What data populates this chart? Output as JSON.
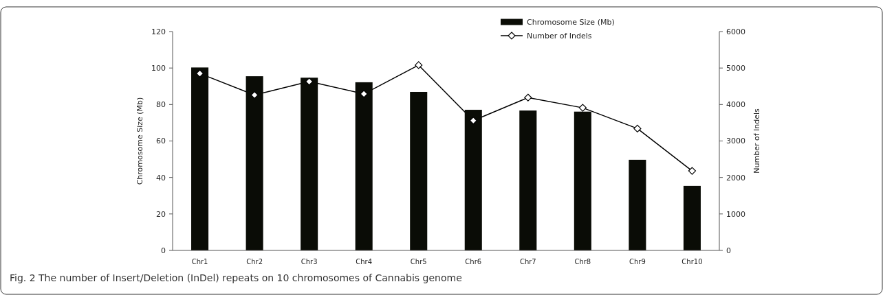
{
  "chart_data": {
    "type": "bar",
    "categories": [
      "Chr1",
      "Chr2",
      "Chr3",
      "Chr4",
      "Chr5",
      "Chr6",
      "Chr7",
      "Chr8",
      "Chr9",
      "Chr10"
    ],
    "series": [
      {
        "name": "Chromosome Size (Mb)",
        "color": "#0a0c06",
        "values": [
          100.3,
          95.5,
          94.7,
          92.2,
          86.9,
          77.1,
          76.7,
          76.1,
          49.7,
          35.4
        ]
      },
      {
        "name": "Number of Indels",
        "type": "line",
        "axis": "y2",
        "color": "#000000",
        "marker": "diamond",
        "values": [
          4850,
          4260,
          4630,
          4290,
          5080,
          3560,
          4190,
          3910,
          3340,
          2180
        ]
      }
    ],
    "ylabel": "Chromosome Size (Mb)",
    "y2label": "Number of Indels",
    "ylim": [
      0,
      120
    ],
    "yticks": [
      0,
      20,
      40,
      60,
      80,
      100,
      120
    ],
    "y2lim": [
      0,
      6000
    ],
    "y2ticks": [
      0,
      1000,
      2000,
      3000,
      4000,
      5000,
      6000
    ],
    "legend": "top right",
    "annotations": [
      "Fig. 2 The number of Insert/Deletion (InDel) repeats on 10 chromosomes of Cannabis genome"
    ]
  }
}
